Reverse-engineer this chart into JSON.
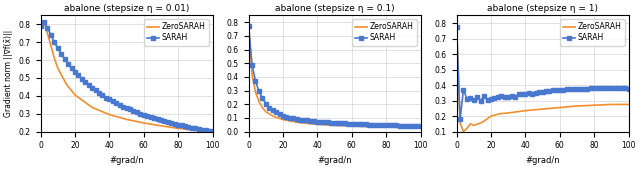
{
  "titles": [
    "abalone (stepsize η = 0.01)",
    "abalone (stepsize η = 0.1)",
    "abalone (stepsize η = 1)"
  ],
  "xlabel": "#grad/n",
  "ylabel": "Gradient norm ||∇f(x̄)||",
  "sarah_color": "#4878cf",
  "zerosarh_color": "#f28e2b",
  "sarah_label": "SARAH",
  "zerosarh_label": "ZeroSARAH",
  "plot1": {
    "xlim": [
      0,
      100
    ],
    "ylim": [
      0.2,
      0.85
    ],
    "yticks": [
      0.2,
      0.3,
      0.4,
      0.5,
      0.6,
      0.7,
      0.8
    ],
    "sarah_x": [
      0,
      2,
      4,
      6,
      8,
      10,
      12,
      14,
      16,
      18,
      20,
      22,
      24,
      26,
      28,
      30,
      32,
      34,
      36,
      38,
      40,
      42,
      44,
      46,
      48,
      50,
      52,
      54,
      56,
      58,
      60,
      62,
      64,
      66,
      68,
      70,
      72,
      74,
      76,
      78,
      80,
      82,
      84,
      86,
      88,
      90,
      92,
      94,
      96,
      98,
      100
    ],
    "sarah_y": [
      0.79,
      0.812,
      0.78,
      0.74,
      0.7,
      0.665,
      0.635,
      0.605,
      0.58,
      0.555,
      0.535,
      0.515,
      0.495,
      0.475,
      0.46,
      0.445,
      0.43,
      0.415,
      0.405,
      0.39,
      0.38,
      0.37,
      0.36,
      0.35,
      0.34,
      0.33,
      0.325,
      0.315,
      0.308,
      0.3,
      0.293,
      0.287,
      0.28,
      0.275,
      0.268,
      0.263,
      0.258,
      0.252,
      0.248,
      0.243,
      0.238,
      0.234,
      0.23,
      0.226,
      0.222,
      0.218,
      0.215,
      0.211,
      0.208,
      0.205,
      0.202
    ],
    "zero_x": [
      0,
      2,
      4,
      6,
      8,
      10,
      15,
      20,
      30,
      40,
      50,
      60,
      70,
      80,
      90,
      100
    ],
    "zero_y": [
      0.79,
      0.812,
      0.75,
      0.68,
      0.61,
      0.555,
      0.465,
      0.405,
      0.335,
      0.295,
      0.268,
      0.248,
      0.232,
      0.218,
      0.207,
      0.198
    ]
  },
  "plot2": {
    "xlim": [
      0,
      100
    ],
    "ylim": [
      0.0,
      0.85
    ],
    "yticks": [
      0.0,
      0.1,
      0.2,
      0.3,
      0.4,
      0.5,
      0.6,
      0.7,
      0.8
    ],
    "sarah_x": [
      0,
      2,
      4,
      6,
      8,
      10,
      12,
      14,
      16,
      18,
      20,
      22,
      24,
      26,
      28,
      30,
      32,
      34,
      36,
      38,
      40,
      42,
      44,
      46,
      48,
      50,
      52,
      54,
      56,
      58,
      60,
      62,
      64,
      66,
      68,
      70,
      72,
      74,
      76,
      78,
      80,
      82,
      84,
      86,
      88,
      90,
      92,
      94,
      96,
      98,
      100
    ],
    "sarah_y": [
      0.775,
      0.49,
      0.37,
      0.295,
      0.245,
      0.205,
      0.175,
      0.155,
      0.14,
      0.125,
      0.115,
      0.108,
      0.102,
      0.097,
      0.092,
      0.088,
      0.084,
      0.081,
      0.078,
      0.075,
      0.073,
      0.071,
      0.069,
      0.067,
      0.065,
      0.063,
      0.062,
      0.06,
      0.059,
      0.057,
      0.056,
      0.055,
      0.054,
      0.053,
      0.052,
      0.051,
      0.05,
      0.049,
      0.048,
      0.047,
      0.047,
      0.046,
      0.045,
      0.045,
      0.044,
      0.043,
      0.043,
      0.042,
      0.042,
      0.041,
      0.041
    ],
    "zero_x": [
      0,
      2,
      4,
      6,
      8,
      10,
      15,
      20,
      25,
      30,
      40,
      50,
      60,
      70,
      80,
      90,
      100
    ],
    "zero_y": [
      0.775,
      0.42,
      0.29,
      0.22,
      0.175,
      0.145,
      0.108,
      0.088,
      0.075,
      0.065,
      0.053,
      0.045,
      0.04,
      0.036,
      0.033,
      0.031,
      0.029
    ]
  },
  "plot3": {
    "xlim": [
      0,
      100
    ],
    "ylim": [
      0.1,
      0.85
    ],
    "yticks": [
      0.1,
      0.2,
      0.3,
      0.4,
      0.5,
      0.6,
      0.7,
      0.8
    ],
    "sarah_x": [
      0,
      2,
      4,
      6,
      8,
      10,
      12,
      14,
      16,
      18,
      20,
      22,
      24,
      26,
      28,
      30,
      32,
      34,
      36,
      38,
      40,
      42,
      44,
      46,
      48,
      50,
      52,
      54,
      56,
      58,
      60,
      62,
      64,
      66,
      68,
      70,
      72,
      74,
      76,
      78,
      80,
      82,
      84,
      86,
      88,
      90,
      92,
      94,
      96,
      98,
      100
    ],
    "sarah_y": [
      0.775,
      0.18,
      0.37,
      0.31,
      0.315,
      0.305,
      0.32,
      0.3,
      0.33,
      0.305,
      0.31,
      0.315,
      0.32,
      0.33,
      0.32,
      0.325,
      0.33,
      0.325,
      0.34,
      0.345,
      0.34,
      0.35,
      0.345,
      0.35,
      0.355,
      0.355,
      0.36,
      0.36,
      0.365,
      0.365,
      0.37,
      0.37,
      0.375,
      0.375,
      0.375,
      0.375,
      0.375,
      0.375,
      0.375,
      0.38,
      0.38,
      0.38,
      0.38,
      0.38,
      0.38,
      0.38,
      0.38,
      0.38,
      0.38,
      0.38,
      0.375
    ],
    "zero_x": [
      0,
      2,
      4,
      6,
      8,
      10,
      15,
      20,
      25,
      30,
      40,
      50,
      60,
      70,
      80,
      90,
      100
    ],
    "zero_y": [
      0.775,
      0.155,
      0.1,
      0.12,
      0.15,
      0.14,
      0.16,
      0.2,
      0.215,
      0.22,
      0.235,
      0.245,
      0.255,
      0.265,
      0.27,
      0.275,
      0.275
    ]
  }
}
